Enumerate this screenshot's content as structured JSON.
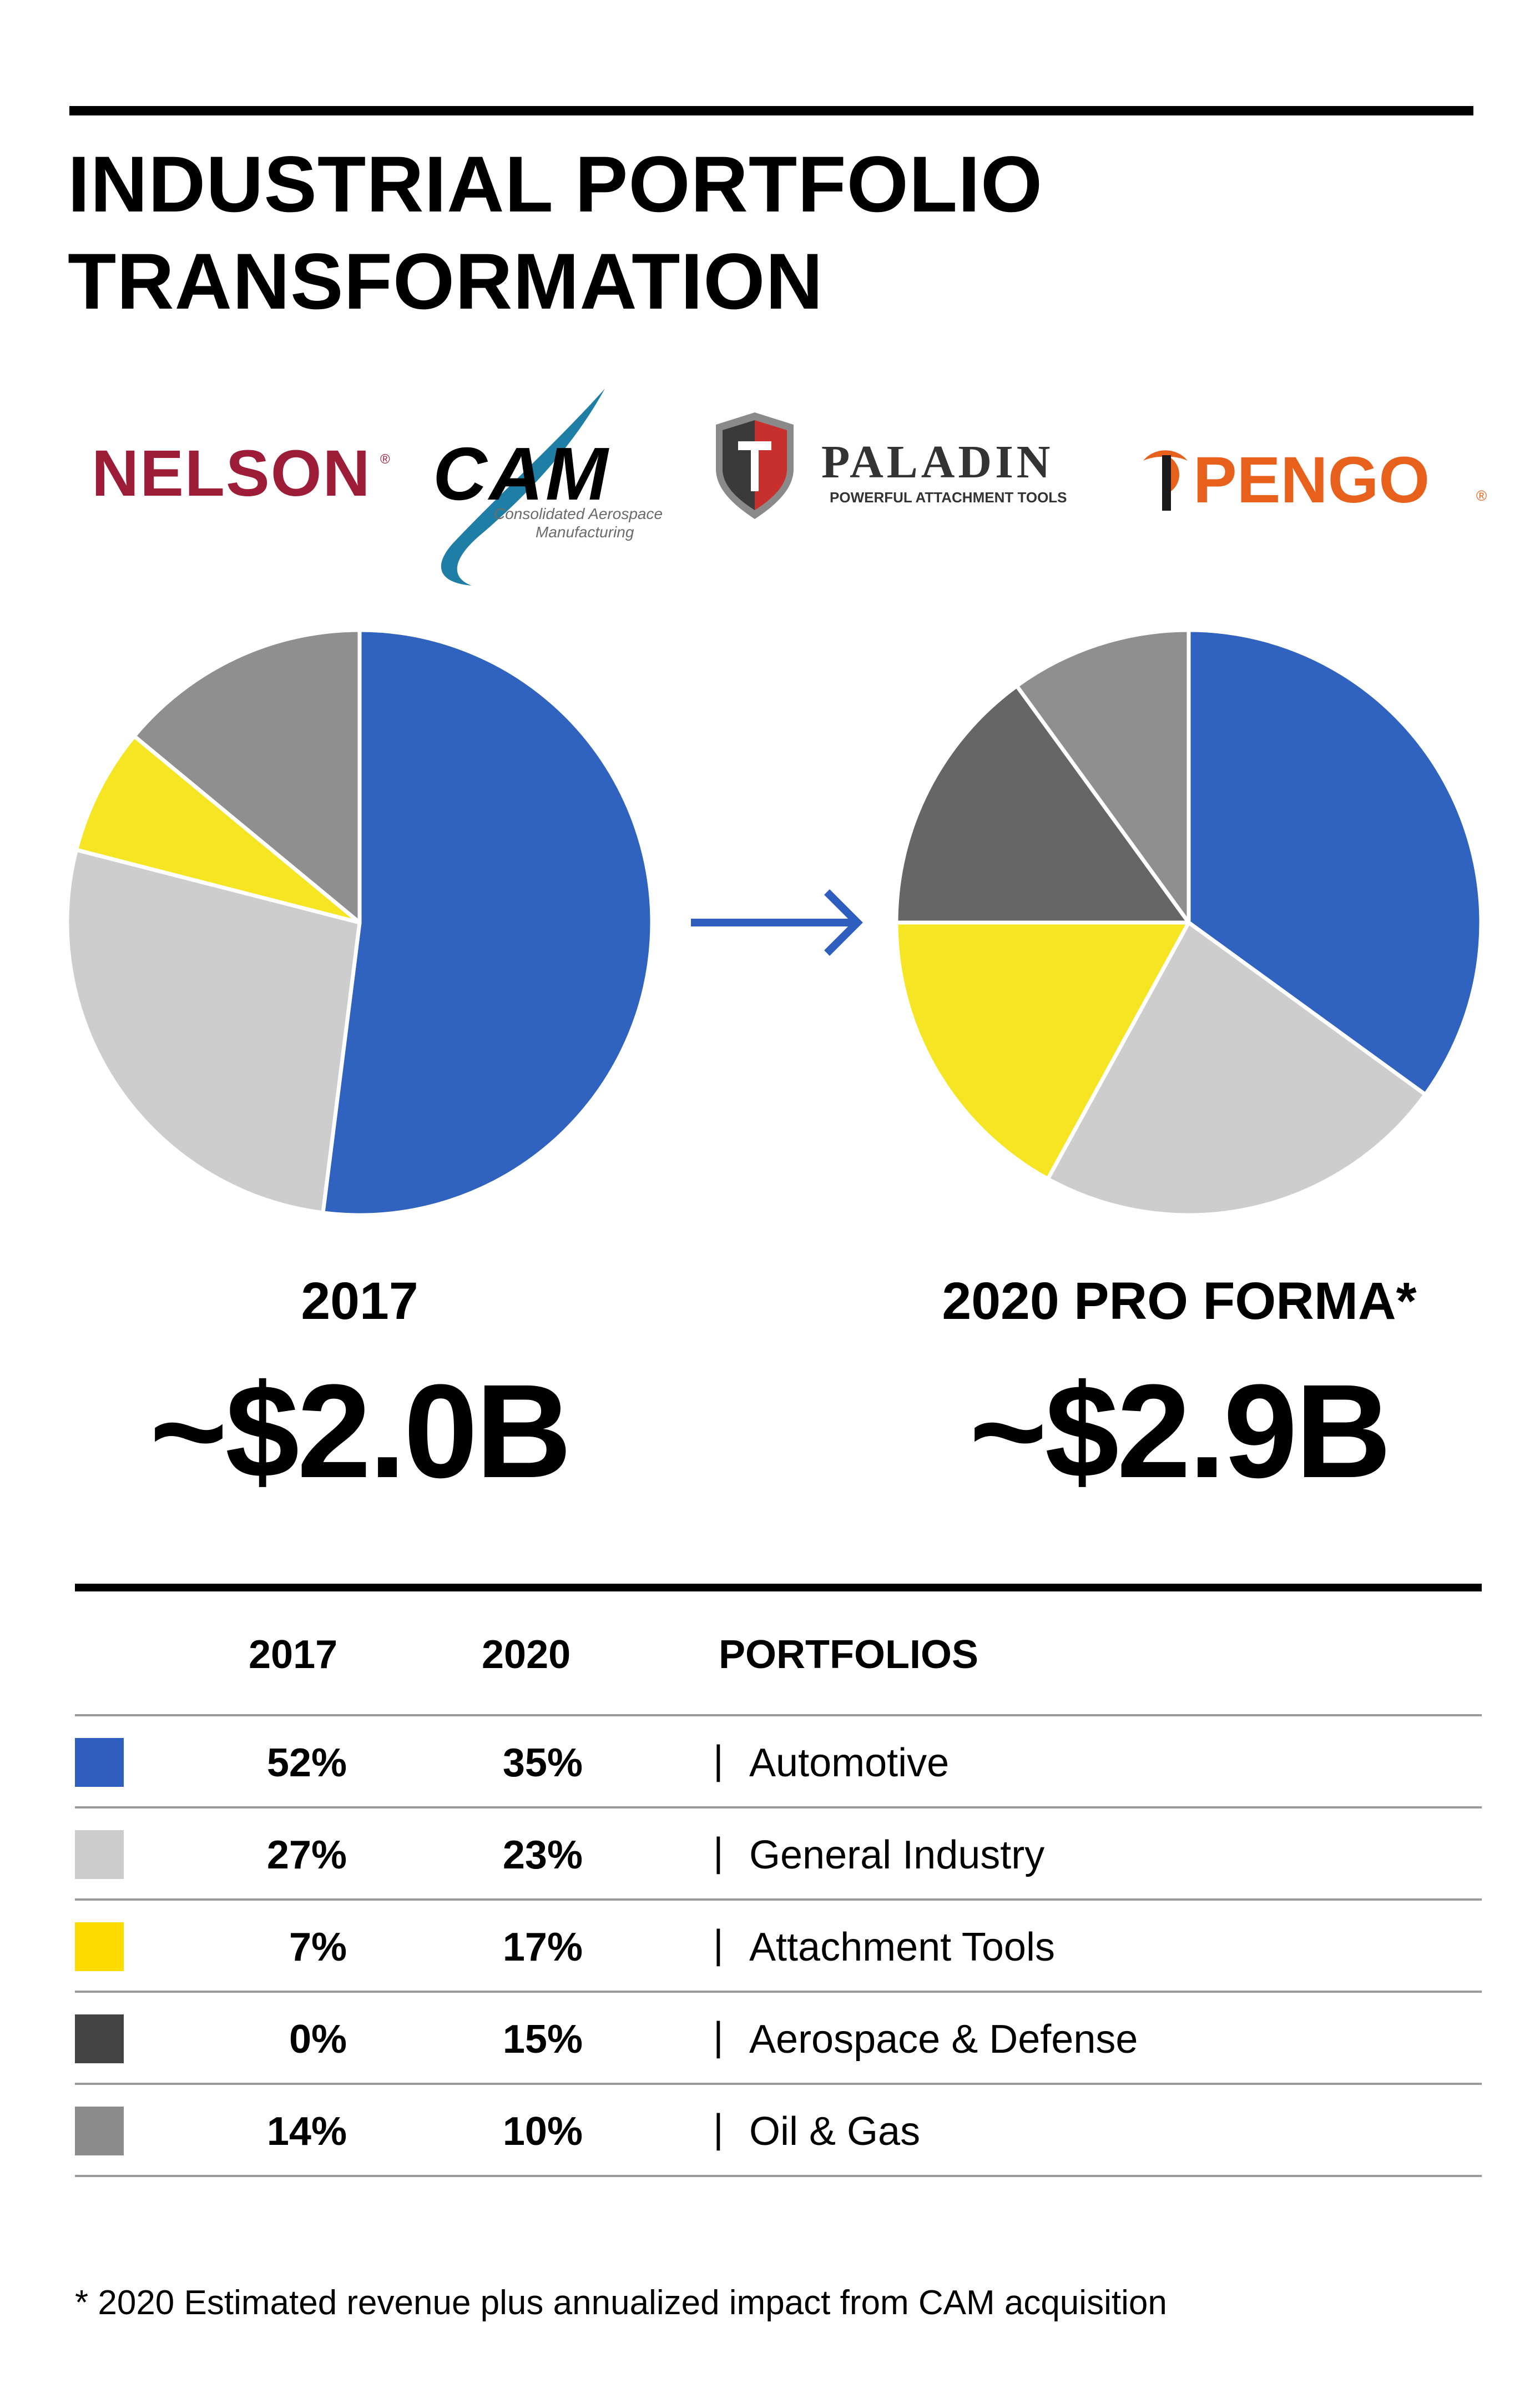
{
  "title_line1": "INDUSTRIAL PORTFOLIO",
  "title_line2": "TRANSFORMATION",
  "logos": {
    "nelson": "NELSON",
    "cam": "CAM",
    "cam_sub1": "Consolidated Aerospace",
    "cam_sub2": "Manufacturing",
    "paladin": "PALADIN",
    "paladin_sub": "POWERFUL ATTACHMENT TOOLS",
    "pengo": "PENGO"
  },
  "chart_data": {
    "type": "pie",
    "categories": [
      "Automotive",
      "General Industry",
      "Attachment Tools",
      "Aerospace & Defense",
      "Oil & Gas"
    ],
    "colors": [
      "#3062BF",
      "#CDCDCD",
      "#F5E523",
      "#666666",
      "#8F8F8F"
    ],
    "series": [
      {
        "name": "2017",
        "values": [
          52,
          27,
          7,
          0,
          14
        ]
      },
      {
        "name": "2020",
        "values": [
          35,
          23,
          17,
          15,
          10
        ]
      }
    ]
  },
  "pies": [
    {
      "label": "2017",
      "total": "~$2.0B"
    },
    {
      "label": "2020 PRO FORMA*",
      "total": "~$2.9B"
    }
  ],
  "table": {
    "headers": [
      "2017",
      "2020",
      "PORTFOLIOS"
    ],
    "rows": [
      {
        "swatch": "#2F5FBE",
        "y2017": "52%",
        "y2020": "35%",
        "label": "Automotive"
      },
      {
        "swatch": "#CCCCCC",
        "y2017": "27%",
        "y2020": "23%",
        "label": "General Industry"
      },
      {
        "swatch": "#FFDC00",
        "y2017": "7%",
        "y2020": "17%",
        "label": "Attachment Tools"
      },
      {
        "swatch": "#444444",
        "y2017": "0%",
        "y2020": "15%",
        "label": "Aerospace & Defense"
      },
      {
        "swatch": "#8C8C8C",
        "y2017": "14%",
        "y2020": "10%",
        "label": "Oil & Gas"
      }
    ],
    "separator": "|"
  },
  "footnote": "* 2020 Estimated revenue plus annualized impact from CAM acquisition"
}
